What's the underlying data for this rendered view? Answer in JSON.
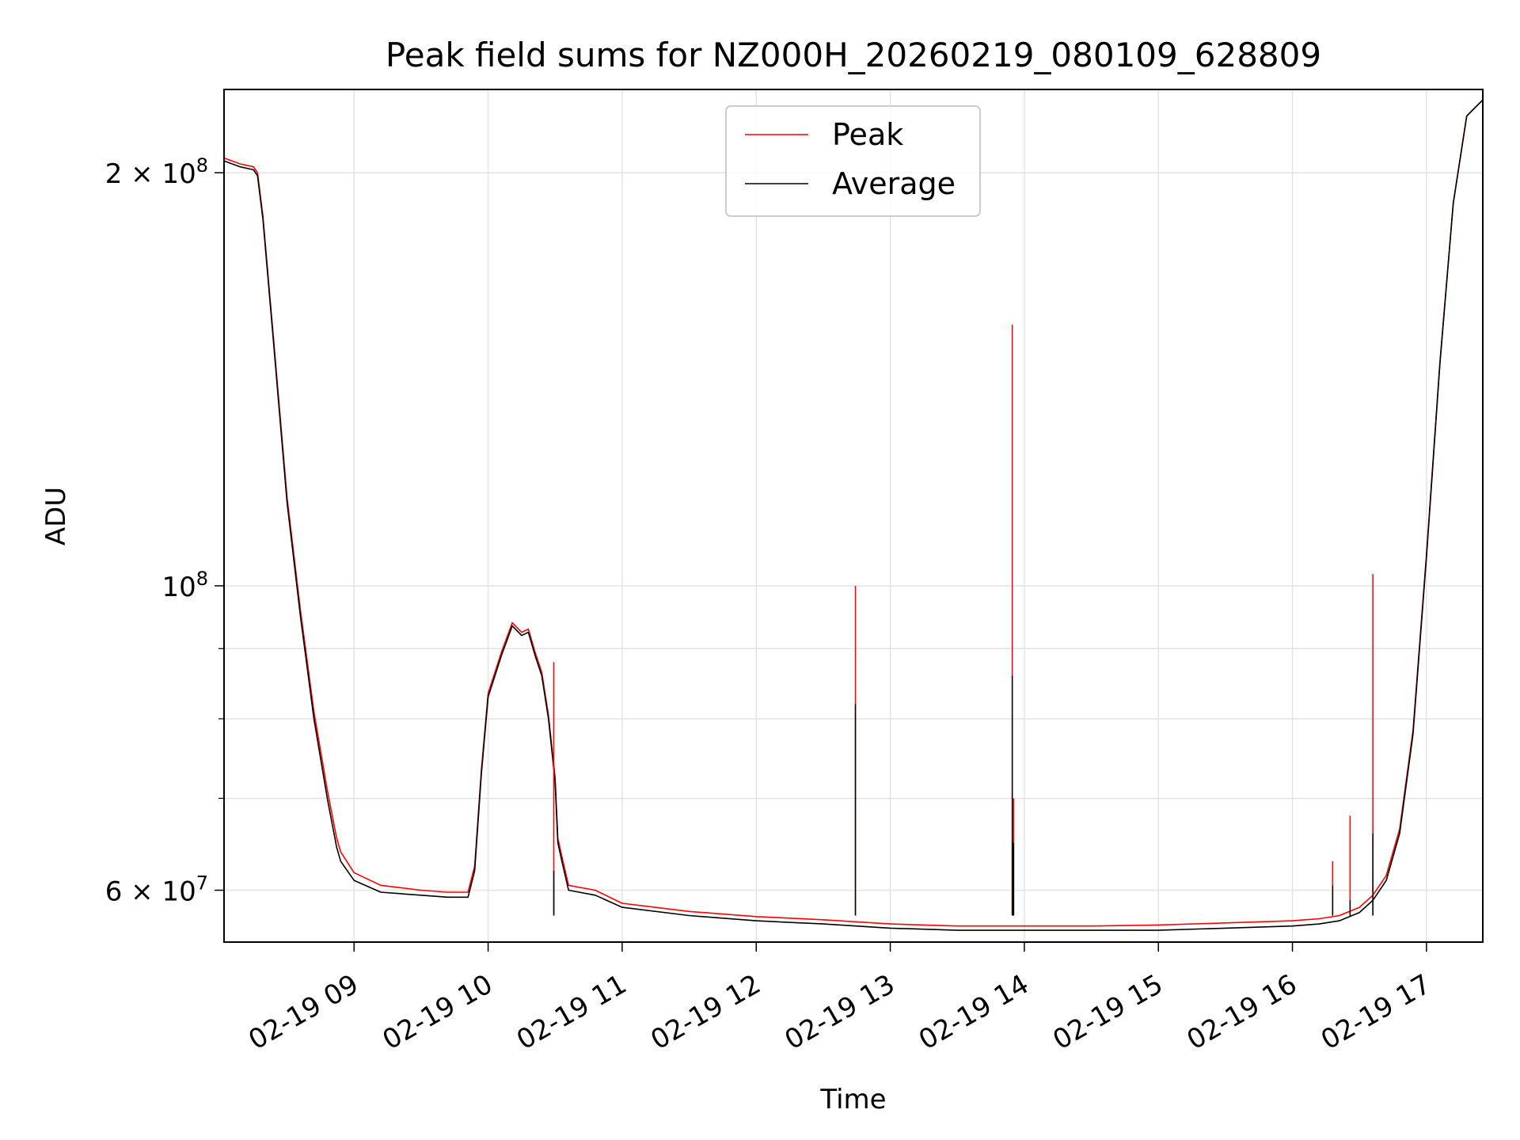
{
  "chart_data": {
    "type": "line",
    "title": "Peak field sums for NZ000H_20260219_080109_628809",
    "xlabel": "Time",
    "ylabel": "ADU",
    "yscale": "log",
    "ylim": [
      55000000,
      230000000
    ],
    "xlim_hours": [
      8.03,
      17.42
    ],
    "grid": true,
    "legend_position": "top-center",
    "x_ticks": [
      {
        "hour": 9,
        "label": "02-19 09"
      },
      {
        "hour": 10,
        "label": "02-19 10"
      },
      {
        "hour": 11,
        "label": "02-19 11"
      },
      {
        "hour": 12,
        "label": "02-19 12"
      },
      {
        "hour": 13,
        "label": "02-19 13"
      },
      {
        "hour": 14,
        "label": "02-19 14"
      },
      {
        "hour": 15,
        "label": "02-19 15"
      },
      {
        "hour": 16,
        "label": "02-19 16"
      },
      {
        "hour": 17,
        "label": "02-19 17"
      }
    ],
    "y_ticks_major": [
      {
        "value": 60000000,
        "mantissa": "6",
        "exp": "7"
      },
      {
        "value": 100000000,
        "mantissa": "",
        "exp": "8"
      },
      {
        "value": 200000000,
        "mantissa": "2",
        "exp": "8"
      }
    ],
    "y_ticks_minor": [
      70000000,
      80000000,
      90000000
    ],
    "series": [
      {
        "name": "Average",
        "color": "#000000",
        "x": [
          8.03,
          8.15,
          8.25,
          8.28,
          8.32,
          8.4,
          8.5,
          8.6,
          8.7,
          8.8,
          8.87,
          8.9,
          9.0,
          9.2,
          9.5,
          9.7,
          9.85,
          9.9,
          9.95,
          10.0,
          10.1,
          10.18,
          10.25,
          10.3,
          10.35,
          10.4,
          10.45,
          10.5,
          10.52,
          10.55,
          10.6,
          10.8,
          11.0,
          11.5,
          12.0,
          12.5,
          13.0,
          13.5,
          14.0,
          14.5,
          15.0,
          15.5,
          16.0,
          16.2,
          16.35,
          16.5,
          16.6,
          16.7,
          16.8,
          16.9,
          17.0,
          17.1,
          17.2,
          17.3,
          17.42
        ],
        "values": [
          204000000,
          202000000,
          201000000,
          199000000,
          185000000,
          150000000,
          115000000,
          95000000,
          80000000,
          70000000,
          64500000,
          63000000,
          61000000,
          59800000,
          59500000,
          59300000,
          59300000,
          62000000,
          73000000,
          83000000,
          89000000,
          93500000,
          92000000,
          92500000,
          89000000,
          86000000,
          80000000,
          72000000,
          65000000,
          63000000,
          60000000,
          59500000,
          58300000,
          57500000,
          57000000,
          56700000,
          56300000,
          56100000,
          56100000,
          56100000,
          56100000,
          56300000,
          56500000,
          56700000,
          57000000,
          57800000,
          59000000,
          61000000,
          66000000,
          78000000,
          105000000,
          145000000,
          190000000,
          220000000,
          226000000
        ]
      },
      {
        "name": "Peak",
        "color": "#ff0000",
        "x": [
          8.03,
          8.15,
          8.25,
          8.28,
          8.32,
          8.4,
          8.5,
          8.6,
          8.7,
          8.8,
          8.87,
          8.9,
          9.0,
          9.2,
          9.5,
          9.7,
          9.85,
          9.9,
          9.95,
          10.0,
          10.1,
          10.18,
          10.25,
          10.3,
          10.35,
          10.4,
          10.45,
          10.5,
          10.52,
          10.55,
          10.6,
          10.8,
          11.0,
          11.5,
          12.0,
          12.5,
          13.0,
          13.5,
          14.0,
          14.5,
          15.0,
          15.5,
          16.0,
          16.2,
          16.35,
          16.5,
          16.6,
          16.7,
          16.8,
          16.9,
          17.0,
          17.1,
          17.2,
          17.3,
          17.42
        ],
        "values": [
          205000000,
          203000000,
          202000000,
          200000000,
          186000000,
          151000000,
          116000000,
          96000000,
          81000000,
          71000000,
          65500000,
          64000000,
          61800000,
          60500000,
          60000000,
          59800000,
          59800000,
          62500000,
          73500000,
          83500000,
          89500000,
          94000000,
          92500000,
          93000000,
          89500000,
          86500000,
          80500000,
          72500000,
          65500000,
          63500000,
          60500000,
          60000000,
          58700000,
          57900000,
          57400000,
          57100000,
          56700000,
          56500000,
          56500000,
          56500000,
          56600000,
          56800000,
          57000000,
          57200000,
          57500000,
          58300000,
          59500000,
          61500000,
          66500000,
          78500000,
          105500000,
          145500000,
          190000000,
          220000000,
          226000000
        ]
      }
    ],
    "spikes": [
      {
        "hour": 10.49,
        "peak": 88000000,
        "average": 62000000
      },
      {
        "hour": 12.74,
        "peak": 100000000,
        "average": 82000000
      },
      {
        "hour": 13.91,
        "peak": 155000000,
        "average": 86000000
      },
      {
        "hour": 13.92,
        "peak": 70000000,
        "average": 65000000
      },
      {
        "hour": 16.3,
        "peak": 63000000,
        "average": 60500000
      },
      {
        "hour": 16.43,
        "peak": 68000000,
        "average": 59000000
      },
      {
        "hour": 16.6,
        "peak": 102000000,
        "average": 66000000
      }
    ]
  }
}
